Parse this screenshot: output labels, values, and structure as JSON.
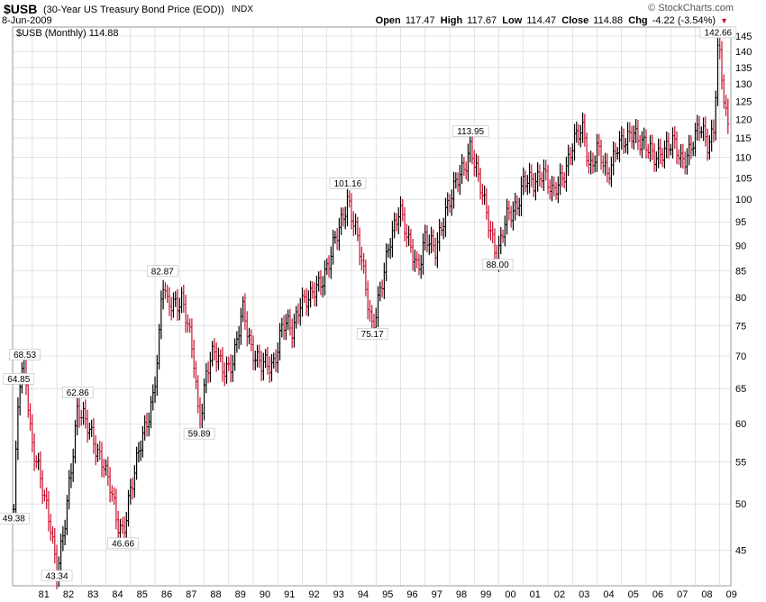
{
  "header": {
    "symbol": "$USB",
    "description": "(30-Year US Treasury Bond Price (EOD))",
    "exchange": "INDX",
    "date": "8-Jun-2009",
    "brand": "© StockCharts.com",
    "open_label": "Open",
    "open": "117.47",
    "high_label": "High",
    "high": "117.67",
    "low_label": "Low",
    "low": "114.47",
    "close_label": "Close",
    "close": "114.88",
    "chg_label": "Chg",
    "chg": "-4.22 (-3.54%)"
  },
  "colors": {
    "up": "#000000",
    "down": "#c8102e",
    "grid": "#d0d0d0",
    "border": "#999999"
  },
  "chart_data": {
    "type": "line",
    "style": "ohlc-bars",
    "scale": "log",
    "legend": "$USB (Monthly) 114.88",
    "legend_position": "top-left",
    "grid": true,
    "ylim": [
      41.5,
      148
    ],
    "y_ticks": [
      45,
      50,
      55,
      60,
      65,
      70,
      75,
      80,
      85,
      90,
      95,
      100,
      105,
      110,
      115,
      120,
      125,
      130,
      135,
      140,
      145
    ],
    "xlim": [
      1980.2,
      2009.45
    ],
    "x_ticks": [
      {
        "year": 1981,
        "label": "81"
      },
      {
        "year": 1982,
        "label": "82"
      },
      {
        "year": 1983,
        "label": "83"
      },
      {
        "year": 1984,
        "label": "84"
      },
      {
        "year": 1985,
        "label": "85"
      },
      {
        "year": 1986,
        "label": "86"
      },
      {
        "year": 1987,
        "label": "87"
      },
      {
        "year": 1988,
        "label": "88"
      },
      {
        "year": 1989,
        "label": "89"
      },
      {
        "year": 1990,
        "label": "90"
      },
      {
        "year": 1991,
        "label": "91"
      },
      {
        "year": 1992,
        "label": "92"
      },
      {
        "year": 1993,
        "label": "93"
      },
      {
        "year": 1994,
        "label": "94"
      },
      {
        "year": 1995,
        "label": "95"
      },
      {
        "year": 1996,
        "label": "96"
      },
      {
        "year": 1997,
        "label": "97"
      },
      {
        "year": 1998,
        "label": "98"
      },
      {
        "year": 1999,
        "label": "99"
      },
      {
        "year": 2000,
        "label": "00"
      },
      {
        "year": 2001,
        "label": "01"
      },
      {
        "year": 2002,
        "label": "02"
      },
      {
        "year": 2003,
        "label": "03"
      },
      {
        "year": 2004,
        "label": "04"
      },
      {
        "year": 2005,
        "label": "05"
      },
      {
        "year": 2006,
        "label": "06"
      },
      {
        "year": 2007,
        "label": "07"
      },
      {
        "year": 2008,
        "label": "08"
      },
      {
        "year": 2009,
        "label": "09"
      }
    ],
    "x": [
      1980.25,
      1980.45,
      1980.7,
      1980.95,
      1981.2,
      1981.5,
      1981.75,
      1982.0,
      1982.3,
      1982.6,
      1982.85,
      1983.1,
      1983.35,
      1983.6,
      1983.9,
      1984.2,
      1984.45,
      1984.7,
      1984.95,
      1985.3,
      1985.6,
      1985.9,
      1986.15,
      1986.3,
      1986.5,
      1986.8,
      1987.1,
      1987.4,
      1987.6,
      1987.8,
      1988.1,
      1988.4,
      1988.8,
      1989.2,
      1989.6,
      1989.9,
      1990.3,
      1990.8,
      1991.2,
      1991.6,
      1991.9,
      1992.3,
      1992.7,
      1993.1,
      1993.5,
      1993.85,
      1994.2,
      1994.5,
      1994.85,
      1995.3,
      1995.6,
      1995.95,
      1996.3,
      1996.7,
      1997.0,
      1997.4,
      1997.8,
      1998.2,
      1998.6,
      1998.85,
      1999.2,
      1999.6,
      1999.95,
      2000.3,
      2000.7,
      2001.0,
      2001.4,
      2001.8,
      2002.2,
      2002.6,
      2003.0,
      2003.45,
      2003.7,
      2004.0,
      2004.4,
      2004.8,
      2005.2,
      2005.5,
      2005.8,
      2006.3,
      2006.7,
      2007.1,
      2007.4,
      2007.8,
      2008.2,
      2008.5,
      2008.75,
      2008.93,
      2009.05,
      2009.2,
      2009.4
    ],
    "y": [
      49.38,
      64.85,
      68.53,
      58.5,
      55.0,
      50.0,
      47.5,
      43.34,
      47.0,
      54.0,
      62.86,
      61.5,
      58.5,
      56.0,
      55.5,
      52.0,
      47.2,
      46.66,
      51.5,
      55.5,
      59.0,
      64.0,
      72.0,
      82.87,
      78.0,
      79.5,
      80.0,
      73.0,
      68.5,
      59.89,
      68.0,
      70.0,
      68.5,
      69.0,
      78.0,
      72.0,
      68.0,
      69.0,
      75.0,
      74.0,
      80.0,
      79.0,
      83.0,
      87.0,
      93.0,
      101.16,
      92.0,
      84.0,
      75.17,
      83.0,
      92.0,
      99.0,
      90.0,
      86.0,
      92.0,
      88.0,
      98.0,
      102.0,
      108.0,
      113.95,
      103.0,
      95.0,
      88.0,
      95.0,
      99.0,
      104.0,
      103.0,
      108.0,
      100.0,
      106.0,
      113.0,
      117.0,
      108.0,
      112.0,
      105.0,
      114.0,
      113.0,
      117.0,
      115.0,
      109.0,
      113.0,
      113.0,
      109.0,
      113.0,
      117.0,
      114.0,
      118.0,
      142.66,
      134.0,
      122.0,
      114.88
    ],
    "annotations": [
      {
        "x": 1980.25,
        "y": 49.38,
        "text": "49.38",
        "pos": "below"
      },
      {
        "x": 1980.45,
        "y": 64.85,
        "text": "64.85",
        "pos": "above"
      },
      {
        "x": 1980.7,
        "y": 68.53,
        "text": "68.53",
        "pos": "above"
      },
      {
        "x": 1982.0,
        "y": 43.34,
        "text": "43.34",
        "pos": "below"
      },
      {
        "x": 1982.85,
        "y": 62.86,
        "text": "62.86",
        "pos": "above"
      },
      {
        "x": 1984.7,
        "y": 46.66,
        "text": "46.66",
        "pos": "below"
      },
      {
        "x": 1986.3,
        "y": 82.87,
        "text": "82.87",
        "pos": "above"
      },
      {
        "x": 1987.8,
        "y": 59.89,
        "text": "59.89",
        "pos": "below"
      },
      {
        "x": 1993.85,
        "y": 101.16,
        "text": "101.16",
        "pos": "above"
      },
      {
        "x": 1994.85,
        "y": 75.17,
        "text": "75.17",
        "pos": "below"
      },
      {
        "x": 1998.85,
        "y": 113.95,
        "text": "113.95",
        "pos": "above"
      },
      {
        "x": 1999.95,
        "y": 88.0,
        "text": "88.00",
        "pos": "below"
      },
      {
        "x": 2008.93,
        "y": 142.66,
        "text": "142.66",
        "pos": "above"
      }
    ]
  }
}
